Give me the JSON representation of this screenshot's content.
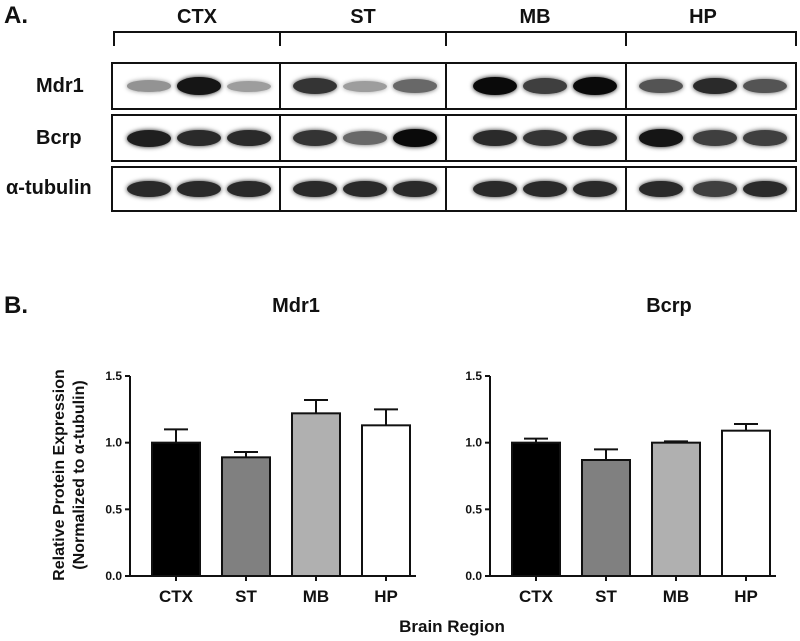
{
  "panelA": {
    "label": "A.",
    "groups": [
      "CTX",
      "ST",
      "MB",
      "HP"
    ],
    "rows": [
      {
        "name": "Mdr1",
        "intensity": [
          0.35,
          0.95,
          0.3,
          0.8,
          0.3,
          0.55,
          1.0,
          0.75,
          1.0,
          0.65,
          0.85,
          0.65
        ]
      },
      {
        "name": "Bcrp",
        "intensity": [
          0.9,
          0.85,
          0.85,
          0.8,
          0.55,
          1.0,
          0.85,
          0.8,
          0.85,
          0.95,
          0.75,
          0.75
        ]
      },
      {
        "name": "α-tubulin",
        "intensity": [
          0.85,
          0.85,
          0.85,
          0.85,
          0.85,
          0.85,
          0.85,
          0.85,
          0.85,
          0.85,
          0.75,
          0.85
        ]
      }
    ]
  },
  "panelB": {
    "label": "B.",
    "ylabel_line1": "Relative Protein  Expression",
    "ylabel_line2": "(Normalized to α-tubulin)",
    "xlabel": "Brain Region"
  },
  "chart_data": [
    {
      "type": "bar",
      "title": "Mdr1",
      "categories": [
        "CTX",
        "ST",
        "MB",
        "HP"
      ],
      "values": [
        1.0,
        0.89,
        1.22,
        1.13
      ],
      "errors": [
        0.1,
        0.04,
        0.1,
        0.12
      ],
      "colors": [
        "#000000",
        "#808080",
        "#b0b0b0",
        "#ffffff"
      ],
      "ylim": [
        0,
        1.5
      ],
      "yticks": [
        "0.0",
        "0.5",
        "1.0",
        "1.5"
      ]
    },
    {
      "type": "bar",
      "title": "Bcrp",
      "categories": [
        "CTX",
        "ST",
        "MB",
        "HP"
      ],
      "values": [
        1.0,
        0.87,
        1.0,
        1.09
      ],
      "errors": [
        0.03,
        0.08,
        0.01,
        0.05
      ],
      "colors": [
        "#000000",
        "#808080",
        "#b0b0b0",
        "#ffffff"
      ],
      "ylim": [
        0,
        1.5
      ],
      "yticks": [
        "0.0",
        "0.5",
        "1.0",
        "1.5"
      ]
    }
  ]
}
